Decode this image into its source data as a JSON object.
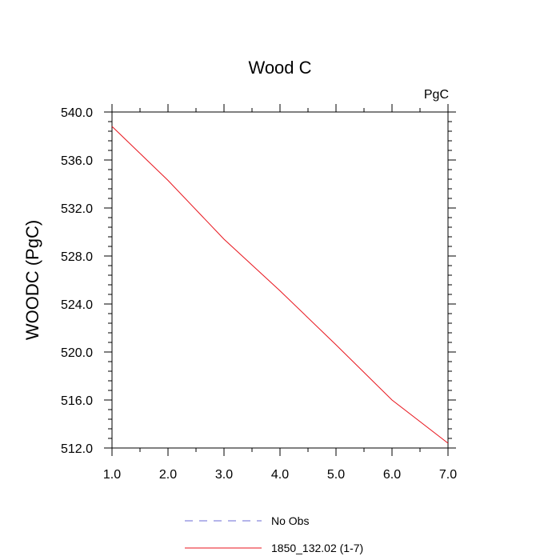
{
  "chart_data": {
    "type": "line",
    "title": "Wood C",
    "units_label": "PgC",
    "xlabel": "",
    "ylabel": "WOODC  (PgC)",
    "xlim": [
      1.0,
      7.0
    ],
    "ylim": [
      512.0,
      540.0
    ],
    "x_ticks": [
      1.0,
      2.0,
      3.0,
      4.0,
      5.0,
      6.0,
      7.0
    ],
    "x_tick_labels": [
      "1.0",
      "2.0",
      "3.0",
      "4.0",
      "5.0",
      "6.0",
      "7.0"
    ],
    "y_ticks": [
      512.0,
      516.0,
      520.0,
      524.0,
      528.0,
      532.0,
      536.0,
      540.0
    ],
    "y_tick_labels": [
      "512.0",
      "516.0",
      "520.0",
      "524.0",
      "528.0",
      "532.0",
      "536.0",
      "540.0"
    ],
    "grid": false,
    "legend_position": "bottom",
    "series": [
      {
        "name": "No Obs",
        "color": "#6b6bd6",
        "dash": "dashed",
        "x": [],
        "y": []
      },
      {
        "name": "1850_132.02 (1-7)",
        "color": "#e8141c",
        "dash": "solid",
        "x": [
          1.0,
          2.0,
          3.0,
          4.0,
          5.0,
          6.0,
          7.0
        ],
        "y": [
          538.8,
          534.3,
          529.4,
          525.1,
          520.6,
          516.0,
          512.4
        ]
      }
    ]
  }
}
